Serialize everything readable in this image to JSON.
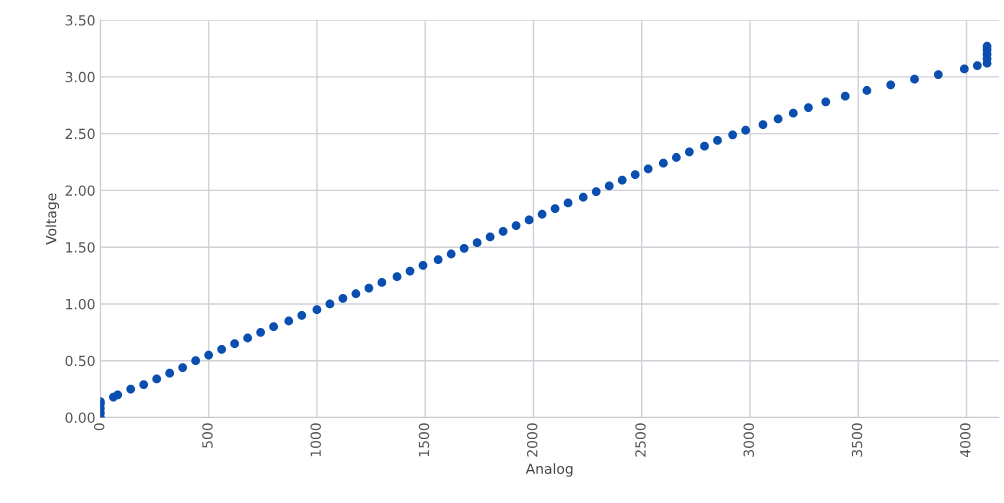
{
  "chart_data": {
    "type": "scatter",
    "xlabel": "Analog",
    "ylabel": "Voltage",
    "x": [
      0,
      0,
      0,
      0,
      0,
      60,
      80,
      140,
      200,
      260,
      320,
      380,
      440,
      500,
      560,
      620,
      680,
      740,
      800,
      870,
      930,
      1000,
      1060,
      1120,
      1180,
      1240,
      1300,
      1370,
      1430,
      1490,
      1560,
      1620,
      1680,
      1740,
      1800,
      1860,
      1920,
      1980,
      2040,
      2100,
      2160,
      2230,
      2290,
      2350,
      2410,
      2470,
      2530,
      2600,
      2660,
      2720,
      2790,
      2850,
      2920,
      2980,
      3060,
      3130,
      3200,
      3270,
      3350,
      3440,
      3540,
      3650,
      3760,
      3870,
      3990,
      4050,
      4095,
      4095,
      4095,
      4095,
      4095
    ],
    "values": [
      0.0,
      0.04,
      0.08,
      0.12,
      0.14,
      0.18,
      0.2,
      0.25,
      0.29,
      0.34,
      0.39,
      0.44,
      0.5,
      0.55,
      0.6,
      0.65,
      0.7,
      0.75,
      0.8,
      0.85,
      0.9,
      0.95,
      1.0,
      1.05,
      1.09,
      1.14,
      1.19,
      1.24,
      1.29,
      1.34,
      1.39,
      1.44,
      1.49,
      1.54,
      1.59,
      1.64,
      1.69,
      1.74,
      1.79,
      1.84,
      1.89,
      1.94,
      1.99,
      2.04,
      2.09,
      2.14,
      2.19,
      2.24,
      2.29,
      2.34,
      2.39,
      2.44,
      2.49,
      2.53,
      2.58,
      2.63,
      2.68,
      2.73,
      2.78,
      2.83,
      2.88,
      2.93,
      2.98,
      3.02,
      3.07,
      3.1,
      3.12,
      3.16,
      3.2,
      3.24,
      3.27
    ],
    "color": "#0a4fb0",
    "marker": "circle",
    "grid": true,
    "xlim": [
      0,
      4150
    ],
    "xticks": [
      0,
      500,
      1000,
      1500,
      2000,
      2500,
      3000,
      3500,
      4000
    ],
    "ylim": [
      0,
      3.5
    ],
    "yticks": [
      {
        "value": 0,
        "label": "0.00"
      },
      {
        "value": 0.5,
        "label": "0.50"
      },
      {
        "value": 1,
        "label": "1.00"
      },
      {
        "value": 1.5,
        "label": "1.50"
      },
      {
        "value": 2,
        "label": "2.00"
      },
      {
        "value": 2.5,
        "label": "2.50"
      },
      {
        "value": 3,
        "label": "3.00"
      },
      {
        "value": 3.5,
        "label": "3.50"
      }
    ]
  }
}
